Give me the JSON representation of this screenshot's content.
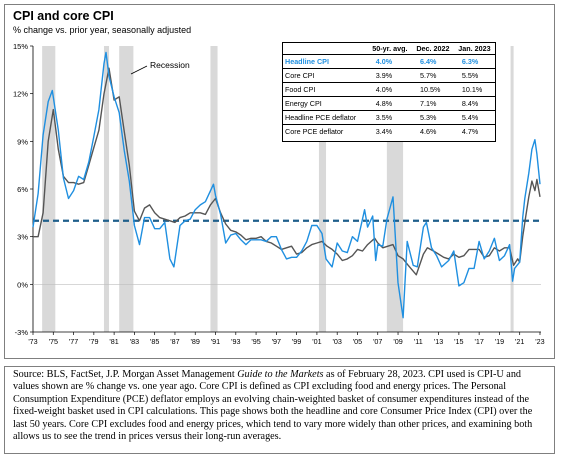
{
  "title": "CPI and core CPI",
  "subtitle": "% change vs. prior year, seasonally adjusted",
  "recession_label": "Recession",
  "colors": {
    "headline": "#1f8fe0",
    "core": "#555555",
    "average_line": "#1f5f8b",
    "recession": "#d9d9d9"
  },
  "table": {
    "headers": [
      "",
      "50-yr. avg.",
      "Dec. 2022",
      "Jan. 2023"
    ],
    "rows": [
      {
        "name": "Headline CPI",
        "avg": "4.0%",
        "dec": "6.4%",
        "jan": "6.3%"
      },
      {
        "name": "Core CPI",
        "avg": "3.9%",
        "dec": "5.7%",
        "jan": "5.5%"
      },
      {
        "name": "Food CPI",
        "avg": "4.0%",
        "dec": "10.5%",
        "jan": "10.1%"
      },
      {
        "name": "Energy CPI",
        "avg": "4.8%",
        "dec": "7.1%",
        "jan": "8.4%"
      },
      {
        "name": "Headline PCE deflator",
        "avg": "3.5%",
        "dec": "5.3%",
        "jan": "5.4%"
      },
      {
        "name": "Core PCE deflator",
        "avg": "3.4%",
        "dec": "4.6%",
        "jan": "4.7%"
      }
    ]
  },
  "source_text": {
    "pre": "Source: BLS, FactSet, J.P. Morgan Asset Management ",
    "guide": "Guide to the Markets",
    "post": " as of February 28, 2023. CPI used is CPI-U and values shown are % change vs. one year ago. Core CPI is defined as CPI excluding food and energy prices. The Personal Consumption Expenditure (PCE) deflator employs an evolving chain-weighted basket of consumer expenditures instead of the fixed-weight basket used in CPI calculations. This page shows both the headline and core Consumer Price Index (CPI) over the last 50 years. Core CPI excludes food and energy prices, which tend to vary more widely than other prices, and examining both allows us to see the trend in prices versus their long-run averages."
  },
  "chart_data": {
    "type": "line",
    "xlim": [
      1973,
      2023.1
    ],
    "ylim": [
      -3,
      15
    ],
    "y_ticks": [
      -3,
      0,
      3,
      6,
      9,
      12,
      15
    ],
    "y_tick_labels": [
      "-3%",
      "0%",
      "3%",
      "6%",
      "9%",
      "12%",
      "15%"
    ],
    "x_ticks": [
      1973,
      1975,
      1977,
      1979,
      1981,
      1983,
      1985,
      1987,
      1989,
      1991,
      1993,
      1995,
      1997,
      1999,
      2001,
      2003,
      2005,
      2007,
      2009,
      2011,
      2013,
      2015,
      2017,
      2019,
      2021,
      2023
    ],
    "x_tick_labels": [
      "'73",
      "'75",
      "'77",
      "'79",
      "'81",
      "'83",
      "'85",
      "'87",
      "'89",
      "'91",
      "'93",
      "'95",
      "'97",
      "'99",
      "'01",
      "'03",
      "'05",
      "'07",
      "'09",
      "'11",
      "'13",
      "'15",
      "'17",
      "'19",
      "'21",
      "'23"
    ],
    "average": 4.0,
    "recessions": [
      [
        1973.9,
        1975.2
      ],
      [
        1980.0,
        1980.5
      ],
      [
        1981.5,
        1982.9
      ],
      [
        1990.5,
        1991.2
      ],
      [
        2001.2,
        2001.9
      ],
      [
        2007.9,
        2009.5
      ],
      [
        2020.1,
        2020.4
      ]
    ],
    "series": [
      {
        "name": "Headline CPI",
        "points": [
          [
            1973,
            3.6
          ],
          [
            1973.5,
            5.7
          ],
          [
            1974,
            9.4
          ],
          [
            1974.5,
            11.5
          ],
          [
            1974.9,
            12.2
          ],
          [
            1975.5,
            9.7
          ],
          [
            1976,
            6.7
          ],
          [
            1976.5,
            5.4
          ],
          [
            1977,
            5.9
          ],
          [
            1977.5,
            6.8
          ],
          [
            1978,
            6.6
          ],
          [
            1978.5,
            7.7
          ],
          [
            1979,
            9.3
          ],
          [
            1979.5,
            11.0
          ],
          [
            1980,
            13.9
          ],
          [
            1980.2,
            14.6
          ],
          [
            1980.5,
            13.1
          ],
          [
            1981,
            11.8
          ],
          [
            1981.5,
            10.8
          ],
          [
            1982,
            8.4
          ],
          [
            1982.5,
            6.5
          ],
          [
            1983,
            3.7
          ],
          [
            1983.5,
            2.5
          ],
          [
            1984,
            4.2
          ],
          [
            1984.5,
            4.2
          ],
          [
            1985,
            3.5
          ],
          [
            1985.5,
            3.5
          ],
          [
            1986,
            3.9
          ],
          [
            1986.5,
            1.6
          ],
          [
            1986.9,
            1.1
          ],
          [
            1987.5,
            3.7
          ],
          [
            1988,
            4.0
          ],
          [
            1988.5,
            4.1
          ],
          [
            1989,
            4.7
          ],
          [
            1989.5,
            5.0
          ],
          [
            1990,
            5.2
          ],
          [
            1990.8,
            6.3
          ],
          [
            1991,
            5.6
          ],
          [
            1991.5,
            4.4
          ],
          [
            1992,
            2.6
          ],
          [
            1992.5,
            3.1
          ],
          [
            1993,
            3.2
          ],
          [
            1993.5,
            2.8
          ],
          [
            1994,
            2.5
          ],
          [
            1994.5,
            2.8
          ],
          [
            1995,
            2.8
          ],
          [
            1995.5,
            2.8
          ],
          [
            1996,
            2.7
          ],
          [
            1996.5,
            3.0
          ],
          [
            1997,
            3.0
          ],
          [
            1997.5,
            2.2
          ],
          [
            1998,
            1.6
          ],
          [
            1998.5,
            1.7
          ],
          [
            1999,
            1.7
          ],
          [
            1999.5,
            2.1
          ],
          [
            2000,
            2.7
          ],
          [
            2000.5,
            3.7
          ],
          [
            2001,
            3.7
          ],
          [
            2001.5,
            3.2
          ],
          [
            2001.9,
            1.6
          ],
          [
            2002.5,
            1.1
          ],
          [
            2003,
            2.6
          ],
          [
            2003.5,
            2.1
          ],
          [
            2004,
            2.0
          ],
          [
            2004.5,
            3.0
          ],
          [
            2005,
            2.7
          ],
          [
            2005.7,
            4.7
          ],
          [
            2006,
            3.6
          ],
          [
            2006.5,
            4.3
          ],
          [
            2006.8,
            1.5
          ],
          [
            2007,
            2.5
          ],
          [
            2007.5,
            2.4
          ],
          [
            2007.9,
            4.1
          ],
          [
            2008.5,
            5.5
          ],
          [
            2009,
            0.1
          ],
          [
            2009.5,
            -2.1
          ],
          [
            2009.9,
            2.7
          ],
          [
            2010.5,
            1.2
          ],
          [
            2010.9,
            1.1
          ],
          [
            2011.5,
            3.6
          ],
          [
            2011.8,
            3.9
          ],
          [
            2012.3,
            2.3
          ],
          [
            2012.8,
            1.8
          ],
          [
            2013.3,
            1.1
          ],
          [
            2014,
            1.5
          ],
          [
            2014.5,
            2.1
          ],
          [
            2015,
            -0.1
          ],
          [
            2015.5,
            0.1
          ],
          [
            2016,
            1.0
          ],
          [
            2016.5,
            1.0
          ],
          [
            2017,
            2.7
          ],
          [
            2017.5,
            1.6
          ],
          [
            2018,
            2.1
          ],
          [
            2018.5,
            2.9
          ],
          [
            2019,
            1.5
          ],
          [
            2019.5,
            1.8
          ],
          [
            2020,
            2.5
          ],
          [
            2020.3,
            0.2
          ],
          [
            2020.5,
            1.0
          ],
          [
            2021,
            1.4
          ],
          [
            2021.3,
            4.2
          ],
          [
            2021.5,
            5.4
          ],
          [
            2021.9,
            7.0
          ],
          [
            2022.2,
            8.5
          ],
          [
            2022.5,
            9.1
          ],
          [
            2022.7,
            8.2
          ],
          [
            2023.0,
            6.3
          ]
        ]
      },
      {
        "name": "Core CPI",
        "points": [
          [
            1973,
            3.0
          ],
          [
            1973.5,
            3.0
          ],
          [
            1974,
            4.5
          ],
          [
            1974.5,
            9.0
          ],
          [
            1975,
            11.0
          ],
          [
            1975.5,
            8.5
          ],
          [
            1976,
            6.8
          ],
          [
            1976.5,
            6.4
          ],
          [
            1977,
            6.4
          ],
          [
            1977.5,
            6.3
          ],
          [
            1978,
            6.4
          ],
          [
            1978.5,
            7.5
          ],
          [
            1979,
            8.6
          ],
          [
            1979.5,
            9.7
          ],
          [
            1980,
            12.0
          ],
          [
            1980.5,
            13.6
          ],
          [
            1981,
            11.6
          ],
          [
            1981.5,
            11.8
          ],
          [
            1982,
            9.6
          ],
          [
            1982.5,
            7.5
          ],
          [
            1983,
            4.6
          ],
          [
            1983.5,
            4.0
          ],
          [
            1984,
            4.8
          ],
          [
            1984.5,
            5.0
          ],
          [
            1985,
            4.5
          ],
          [
            1985.5,
            4.2
          ],
          [
            1986,
            4.1
          ],
          [
            1986.5,
            4.0
          ],
          [
            1987,
            3.9
          ],
          [
            1987.5,
            4.2
          ],
          [
            1988,
            4.3
          ],
          [
            1988.5,
            4.5
          ],
          [
            1989,
            4.5
          ],
          [
            1989.5,
            4.5
          ],
          [
            1990,
            4.4
          ],
          [
            1990.5,
            5.0
          ],
          [
            1991,
            5.4
          ],
          [
            1991.5,
            4.5
          ],
          [
            1992,
            3.8
          ],
          [
            1992.5,
            3.4
          ],
          [
            1993,
            3.3
          ],
          [
            1993.5,
            3.1
          ],
          [
            1994,
            2.8
          ],
          [
            1994.5,
            2.9
          ],
          [
            1995,
            2.9
          ],
          [
            1995.5,
            3.0
          ],
          [
            1996,
            2.7
          ],
          [
            1996.5,
            2.6
          ],
          [
            1997,
            2.4
          ],
          [
            1997.5,
            2.2
          ],
          [
            1998,
            2.3
          ],
          [
            1998.5,
            2.4
          ],
          [
            1999,
            1.9
          ],
          [
            1999.5,
            2.0
          ],
          [
            2000,
            2.3
          ],
          [
            2000.5,
            2.5
          ],
          [
            2001,
            2.6
          ],
          [
            2001.5,
            2.7
          ],
          [
            2002,
            2.4
          ],
          [
            2002.5,
            2.2
          ],
          [
            2003,
            1.9
          ],
          [
            2003.5,
            1.5
          ],
          [
            2004,
            1.6
          ],
          [
            2004.5,
            1.8
          ],
          [
            2005,
            2.2
          ],
          [
            2005.5,
            2.1
          ],
          [
            2006,
            2.5
          ],
          [
            2006.7,
            2.9
          ],
          [
            2007,
            2.6
          ],
          [
            2007.5,
            2.3
          ],
          [
            2008,
            2.4
          ],
          [
            2008.5,
            2.5
          ],
          [
            2009,
            1.8
          ],
          [
            2009.5,
            1.6
          ],
          [
            2010,
            1.2
          ],
          [
            2010.8,
            0.6
          ],
          [
            2011.5,
            1.9
          ],
          [
            2011.9,
            2.3
          ],
          [
            2012.5,
            2.1
          ],
          [
            2013,
            1.9
          ],
          [
            2013.5,
            1.7
          ],
          [
            2014,
            1.6
          ],
          [
            2014.5,
            1.9
          ],
          [
            2015,
            1.7
          ],
          [
            2015.5,
            1.8
          ],
          [
            2016,
            2.2
          ],
          [
            2016.5,
            2.2
          ],
          [
            2017,
            2.2
          ],
          [
            2017.5,
            1.7
          ],
          [
            2018,
            1.8
          ],
          [
            2018.5,
            2.3
          ],
          [
            2019,
            2.1
          ],
          [
            2019.5,
            2.3
          ],
          [
            2020,
            2.3
          ],
          [
            2020.4,
            1.2
          ],
          [
            2020.8,
            1.6
          ],
          [
            2021,
            1.4
          ],
          [
            2021.3,
            3.0
          ],
          [
            2021.6,
            4.3
          ],
          [
            2021.9,
            5.5
          ],
          [
            2022.2,
            6.5
          ],
          [
            2022.5,
            5.9
          ],
          [
            2022.7,
            6.6
          ],
          [
            2023.0,
            5.5
          ]
        ]
      }
    ]
  }
}
